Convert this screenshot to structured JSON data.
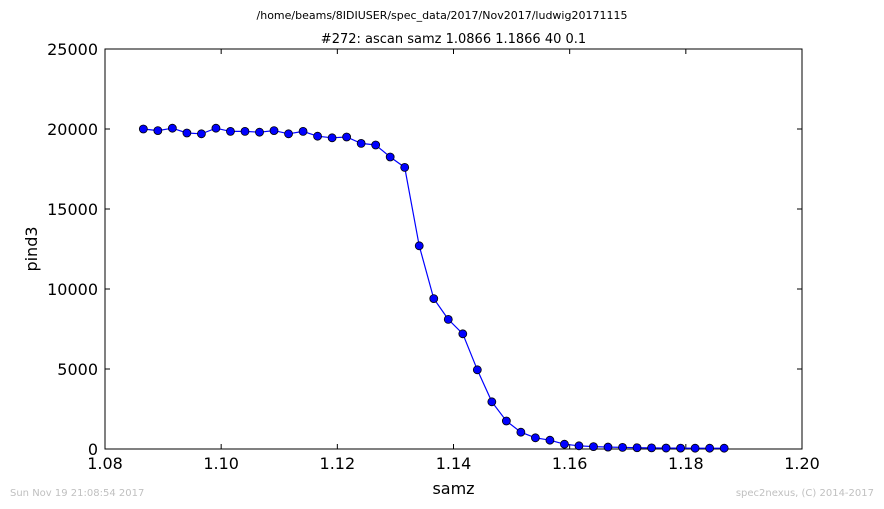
{
  "page": {
    "suptitle": "/home/beams/8IDIUSER/spec_data/2017/Nov2017/ludwig20171115",
    "footer_left": "Sun Nov 19 21:08:54 2017",
    "footer_right": "spec2nexus, (C) 2014-2017"
  },
  "chart_data": {
    "type": "line",
    "title": "#272: ascan  samz 1.0866 1.1866  40 0.1",
    "xlabel": "samz",
    "ylabel": "pind3",
    "xlim": [
      1.08,
      1.2
    ],
    "ylim": [
      0,
      25000
    ],
    "xticks": [
      "1.08",
      "1.10",
      "1.12",
      "1.14",
      "1.16",
      "1.18",
      "1.20"
    ],
    "yticks": [
      "0",
      "5000",
      "10000",
      "15000",
      "20000",
      "25000"
    ],
    "grid": false,
    "marker": "circle",
    "line_color": "#0000ff",
    "x": [
      1.0866,
      1.0891,
      1.0916,
      1.0941,
      1.0966,
      1.0991,
      1.1016,
      1.1041,
      1.1066,
      1.1091,
      1.1116,
      1.1141,
      1.1166,
      1.1191,
      1.1216,
      1.1241,
      1.1266,
      1.1291,
      1.1316,
      1.1341,
      1.1366,
      1.1391,
      1.1416,
      1.1441,
      1.1466,
      1.1491,
      1.1516,
      1.1541,
      1.1566,
      1.1591,
      1.1616,
      1.1641,
      1.1666,
      1.1691,
      1.1716,
      1.1741,
      1.1766,
      1.1791,
      1.1816,
      1.1841,
      1.1866
    ],
    "series": [
      {
        "values": [
          20000,
          19900,
          20050,
          19750,
          19700,
          20050,
          19850,
          19850,
          19800,
          19900,
          19700,
          19850,
          19550,
          19450,
          19500,
          19100,
          19000,
          18250,
          17600,
          12700,
          9400,
          8100,
          7200,
          4950,
          2950,
          1750,
          1050,
          700,
          550,
          300,
          200,
          150,
          120,
          100,
          80,
          70,
          60,
          55,
          50,
          50,
          50
        ]
      }
    ]
  }
}
